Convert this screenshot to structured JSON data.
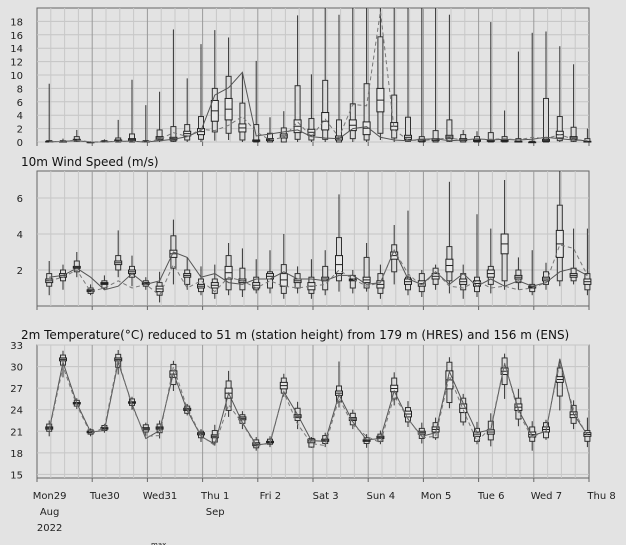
{
  "chart_data": [
    {
      "type": "boxplot",
      "title": "",
      "ylim": [
        0,
        20
      ],
      "yticks": [
        0,
        2,
        4,
        6,
        8,
        10,
        12,
        14,
        16,
        18
      ],
      "grid": true,
      "boxes": [
        [
          0,
          0,
          0,
          0.1,
          0.2,
          8.7
        ],
        [
          0,
          0,
          0,
          0.1,
          0.2,
          0.5
        ],
        [
          0,
          0.1,
          0.2,
          0.4,
          0.8,
          1.8
        ],
        [
          0,
          0,
          0,
          0,
          0,
          0.1
        ],
        [
          0,
          0,
          0,
          0.1,
          0.2,
          0.4
        ],
        [
          0,
          0,
          0.1,
          0.3,
          0.6,
          3.3
        ],
        [
          0,
          0,
          0.2,
          0.5,
          1.2,
          9.3
        ],
        [
          0,
          0,
          0,
          0.1,
          0.2,
          5.5
        ],
        [
          0,
          0.2,
          0.4,
          0.8,
          1.8,
          7.5
        ],
        [
          0,
          0.1,
          0.3,
          0.7,
          2.3,
          16.8
        ],
        [
          0,
          0.3,
          0.9,
          1.6,
          2.6,
          9.5
        ],
        [
          0,
          0.4,
          1.1,
          2.0,
          3.8,
          14.6
        ],
        [
          0.2,
          1.5,
          3.1,
          6.2,
          8.0,
          16.7
        ],
        [
          0.3,
          1.3,
          3.3,
          6.5,
          9.8,
          15.6
        ],
        [
          0,
          0.3,
          1.5,
          2.7,
          5.8,
          10.2
        ],
        [
          0,
          0,
          0.1,
          0.3,
          2.6,
          12.1
        ],
        [
          0,
          0,
          0.2,
          0.5,
          1.3,
          3.7
        ],
        [
          0,
          0,
          0.6,
          1.2,
          2.1,
          4.6
        ],
        [
          0,
          0.4,
          1.4,
          3.3,
          8.4,
          18.9
        ],
        [
          0,
          0.3,
          1.0,
          1.9,
          3.5,
          10.1
        ],
        [
          0,
          0.4,
          1.8,
          4.4,
          9.2,
          20
        ],
        [
          0,
          0,
          0.3,
          0.9,
          3.3,
          19.0
        ],
        [
          0,
          0.5,
          1.7,
          3.3,
          5.7,
          20
        ],
        [
          0,
          0.3,
          1.1,
          3.0,
          8.7,
          20
        ],
        [
          0.3,
          1.3,
          4.5,
          8.0,
          15.7,
          20
        ],
        [
          0,
          0.6,
          1.8,
          2.9,
          7.0,
          20
        ],
        [
          0,
          0.1,
          0.4,
          1.0,
          3.7,
          20
        ],
        [
          0,
          0,
          0.1,
          0.4,
          0.8,
          20
        ],
        [
          0,
          0,
          0.2,
          0.5,
          1.7,
          20
        ],
        [
          0,
          0.1,
          0.5,
          1.0,
          3.3,
          19.0
        ],
        [
          0,
          0,
          0.2,
          0.5,
          1.1,
          1.8
        ],
        [
          0,
          0,
          0.1,
          0.3,
          0.8,
          1.6
        ],
        [
          0,
          0,
          0.1,
          0.3,
          1.4,
          17.9
        ],
        [
          0,
          0,
          0.1,
          0.3,
          0.8,
          4.7
        ],
        [
          0,
          0,
          0,
          0.1,
          0.5,
          13.5
        ],
        [
          0,
          0,
          0,
          0,
          0.1,
          16.3
        ],
        [
          0,
          0,
          0.1,
          0.4,
          6.5,
          16.5
        ],
        [
          0,
          0.2,
          0.6,
          1.6,
          3.8,
          14.3
        ],
        [
          0,
          0.1,
          0.4,
          0.8,
          2.2,
          11.6
        ],
        [
          0,
          0,
          0,
          0.1,
          0.5,
          2.0
        ]
      ],
      "series": [
        {
          "values": [
            0,
            0.1,
            0.2,
            0,
            0,
            0.1,
            0.1,
            0,
            0.2,
            0.4,
            0.8,
            1.7,
            7.0,
            8.1,
            10.4,
            0.9,
            1.2,
            1.5,
            1.8,
            0.8,
            0.6,
            0.5,
            2.0,
            2.3,
            0.7,
            0.3,
            0.2,
            0.4,
            0.5,
            0.2,
            0.3,
            0.5,
            0.3,
            0.4,
            0.3,
            0.4,
            0.7,
            0.5,
            0.3,
            0.2
          ]
        },
        {
          "values": [
            0,
            0.1,
            0.3,
            0,
            0,
            0.1,
            0.1,
            0,
            0.4,
            1.4,
            0.8,
            1.9,
            1.7,
            2.5,
            3.8,
            1.5,
            0.3,
            0.7,
            3.0,
            0.8,
            3.4,
            0.7,
            5.6,
            5.4,
            19.5,
            1.8,
            0.3,
            0.2,
            0.4,
            0.6,
            0.3,
            0.4,
            0.4,
            0.5,
            0.3,
            0.7,
            0.5,
            1.1,
            0.4,
            0.2
          ]
        }
      ]
    },
    {
      "type": "boxplot",
      "title": "10m Wind Speed (m/s)",
      "ylim": [
        0,
        7.5
      ],
      "yticks": [
        2,
        4,
        6
      ],
      "grid": true,
      "boxes": [
        [
          0.6,
          1.1,
          1.3,
          1.5,
          1.8,
          2.5
        ],
        [
          0.9,
          1.4,
          1.6,
          1.8,
          2.0,
          2.3
        ],
        [
          1.6,
          1.9,
          2.1,
          2.2,
          2.5,
          3.0
        ],
        [
          0.6,
          0.7,
          0.8,
          0.9,
          1.0,
          1.2
        ],
        [
          0.9,
          1.0,
          1.2,
          1.3,
          1.4,
          1.7
        ],
        [
          1.6,
          2.0,
          2.3,
          2.5,
          2.8,
          4.2
        ],
        [
          1.1,
          1.6,
          1.8,
          2.0,
          2.2,
          2.8
        ],
        [
          0.9,
          1.1,
          1.2,
          1.3,
          1.4,
          1.6
        ],
        [
          0.2,
          0.6,
          0.8,
          1.1,
          1.3,
          1.9
        ],
        [
          1.2,
          2.1,
          2.7,
          3.1,
          3.9,
          4.8
        ],
        [
          0.9,
          1.2,
          1.6,
          1.8,
          2.0,
          2.7
        ],
        [
          0.6,
          0.8,
          1.0,
          1.2,
          1.5,
          2.2
        ],
        [
          0.4,
          0.7,
          1.0,
          1.3,
          1.5,
          2.3
        ],
        [
          0.6,
          0.9,
          1.5,
          2.2,
          2.8,
          3.5
        ],
        [
          0.5,
          0.9,
          1.3,
          1.5,
          2.1,
          3.2
        ],
        [
          0.7,
          0.9,
          1.0,
          1.3,
          1.6,
          2.6
        ],
        [
          0.7,
          1.0,
          1.5,
          1.8,
          1.9,
          3.1
        ],
        [
          0.4,
          0.7,
          1.1,
          1.8,
          2.3,
          4.0
        ],
        [
          0.7,
          1.0,
          1.3,
          1.5,
          1.8,
          2.2
        ],
        [
          0.4,
          0.7,
          0.9,
          1.3,
          1.6,
          2.6
        ],
        [
          0.6,
          0.9,
          1.4,
          1.6,
          2.2,
          3.1
        ],
        [
          0.8,
          1.4,
          1.8,
          2.8,
          3.8,
          6.2
        ],
        [
          0.7,
          1.0,
          1.4,
          1.5,
          1.7,
          2.0
        ],
        [
          0.8,
          1.0,
          1.3,
          1.6,
          2.7,
          3.5
        ],
        [
          0.4,
          0.7,
          1.0,
          1.4,
          1.8,
          2.3
        ],
        [
          1.2,
          1.9,
          2.6,
          3.0,
          3.4,
          4.5
        ],
        [
          0.6,
          0.9,
          1.2,
          1.5,
          1.6,
          5.3
        ],
        [
          0.5,
          0.8,
          1.1,
          1.4,
          1.8,
          2.0
        ],
        [
          0.9,
          1.2,
          1.5,
          1.8,
          2.1,
          2.3
        ],
        [
          0.7,
          1.4,
          1.9,
          2.6,
          3.3,
          6.9
        ],
        [
          0.4,
          0.9,
          1.2,
          1.5,
          1.8,
          2.3
        ],
        [
          0.5,
          0.8,
          1.1,
          1.4,
          1.6,
          5.1
        ],
        [
          0.7,
          1.2,
          1.6,
          2.0,
          2.2,
          4.3
        ],
        [
          0.9,
          1.4,
          2.9,
          4.0,
          4.0,
          7.0
        ],
        [
          0.9,
          1.3,
          1.5,
          1.7,
          2.0,
          2.7
        ],
        [
          0.6,
          0.8,
          1.0,
          1.1,
          1.2,
          3.1
        ],
        [
          0.9,
          1.2,
          1.4,
          1.6,
          1.9,
          2.4
        ],
        [
          1.1,
          1.4,
          2.7,
          4.2,
          5.6,
          7.5
        ],
        [
          1.2,
          1.4,
          1.6,
          1.8,
          2.1,
          4.3
        ],
        [
          0.6,
          0.9,
          1.2,
          1.5,
          1.8,
          4.3
        ]
      ],
      "series": [
        {
          "values": [
            1.6,
            1.7,
            2.1,
            1.6,
            0.9,
            1.1,
            1.8,
            1.2,
            1.4,
            3.0,
            2.7,
            1.6,
            1.8,
            1.3,
            1.2,
            1.5,
            1.5,
            1.9,
            1.5,
            1.5,
            1.4,
            1.7,
            1.7,
            1.2,
            1.3,
            3.1,
            1.5,
            1.2,
            1.9,
            1.2,
            1.8,
            1.1,
            1.5,
            1.1,
            1.4,
            1.1,
            1.3,
            1.9,
            2.1,
            1.7
          ]
        },
        {
          "values": [
            1.4,
            1.6,
            2.0,
            0.8,
            1.0,
            1.4,
            1.0,
            1.2,
            0.6,
            2.3,
            1.0,
            1.4,
            0.8,
            1.6,
            1.4,
            1.0,
            1.4,
            1.1,
            1.0,
            1.1,
            1.2,
            2.0,
            1.5,
            1.1,
            1.3,
            3.1,
            1.8,
            1.1,
            1.9,
            1.1,
            1.0,
            1.4,
            1.0,
            1.1,
            0.9,
            1.0,
            1.3,
            3.4,
            3.2,
            1.7
          ]
        }
      ]
    },
    {
      "type": "boxplot",
      "title": "2m Temperature(°C) reduced to 51 m (station height) from 179 m (HRES) and 156 m (ENS)",
      "ylim": [
        14.5,
        33
      ],
      "yticks": [
        15,
        18,
        21,
        24,
        27,
        30,
        33
      ],
      "grid": true,
      "boxes": [
        [
          20.3,
          21.0,
          21.3,
          21.6,
          22.0,
          22.5
        ],
        [
          28.5,
          30.2,
          30.8,
          31.2,
          31.6,
          32.2
        ],
        [
          24.1,
          24.5,
          24.8,
          25.0,
          25.3,
          25.6
        ],
        [
          20.3,
          20.6,
          20.8,
          21.0,
          21.2,
          21.4
        ],
        [
          20.8,
          21.1,
          21.3,
          21.5,
          21.8,
          22.0
        ],
        [
          28.9,
          29.9,
          30.8,
          31.2,
          31.7,
          32.3
        ],
        [
          24.0,
          24.6,
          24.9,
          25.1,
          25.5,
          25.8
        ],
        [
          20.3,
          20.9,
          21.2,
          21.5,
          21.9,
          22.2
        ],
        [
          20.0,
          20.8,
          21.3,
          21.6,
          22.0,
          22.5
        ],
        [
          26.6,
          27.5,
          28.5,
          29.4,
          30.3,
          30.8
        ],
        [
          23.2,
          23.5,
          23.9,
          24.2,
          24.5,
          24.8
        ],
        [
          19.5,
          20.1,
          20.5,
          20.8,
          21.0,
          21.3
        ],
        [
          19.0,
          19.5,
          20.1,
          20.5,
          21.1,
          21.9
        ],
        [
          23.0,
          23.9,
          25.6,
          27.0,
          28.0,
          29.4
        ],
        [
          21.3,
          22.1,
          22.6,
          23.0,
          23.3,
          23.8
        ],
        [
          18.3,
          18.7,
          19.0,
          19.4,
          19.8,
          20.2
        ],
        [
          18.8,
          19.2,
          19.4,
          19.6,
          19.9,
          20.3
        ],
        [
          25.8,
          26.3,
          26.9,
          27.8,
          28.4,
          29.0
        ],
        [
          21.3,
          22.5,
          22.9,
          23.3,
          24.2,
          25.1
        ],
        [
          18.7,
          18.8,
          19.4,
          19.9,
          20.0,
          20.2
        ],
        [
          18.8,
          19.3,
          19.6,
          19.9,
          20.4,
          20.8
        ],
        [
          24.3,
          25.1,
          26.0,
          26.6,
          27.3,
          30.7
        ],
        [
          21.3,
          21.9,
          22.5,
          22.9,
          23.5,
          24.0
        ],
        [
          18.7,
          19.3,
          19.6,
          19.8,
          20.1,
          20.6
        ],
        [
          19.2,
          19.6,
          20.0,
          20.3,
          20.6,
          21.1
        ],
        [
          24.6,
          25.5,
          26.5,
          27.4,
          28.4,
          29.2
        ],
        [
          21.6,
          22.3,
          23.0,
          23.8,
          24.3,
          25.2
        ],
        [
          19.3,
          20.0,
          20.6,
          21.0,
          21.4,
          22.2
        ],
        [
          19.8,
          20.1,
          20.9,
          21.6,
          22.2,
          22.9
        ],
        [
          24.2,
          25.0,
          26.9,
          29.4,
          30.6,
          31.3
        ],
        [
          21.8,
          22.3,
          23.6,
          24.8,
          25.6,
          26.2
        ],
        [
          19.2,
          19.6,
          20.3,
          20.9,
          21.4,
          22.3
        ],
        [
          18.9,
          19.8,
          20.6,
          21.2,
          22.4,
          23.5
        ],
        [
          25.5,
          27.5,
          28.9,
          29.8,
          31.2,
          31.8
        ],
        [
          21.7,
          22.7,
          23.9,
          24.8,
          25.6,
          26.9
        ],
        [
          18.3,
          19.6,
          20.2,
          20.9,
          21.6,
          22.4
        ],
        [
          19.8,
          20.1,
          20.9,
          21.6,
          22.2,
          22.6
        ],
        [
          23.9,
          25.9,
          27.8,
          28.6,
          29.8,
          30.9
        ],
        [
          21.3,
          22.1,
          22.9,
          23.7,
          24.6,
          25.3
        ],
        [
          18.8,
          19.6,
          20.3,
          20.8,
          21.1,
          22.9
        ]
      ],
      "series": [
        {
          "values": [
            21.2,
            30.6,
            24.9,
            20.9,
            21.1,
            30.6,
            24.8,
            20.0,
            21.1,
            29.1,
            23.9,
            20.3,
            19.2,
            26.3,
            22.2,
            19.1,
            19.3,
            26.5,
            23.3,
            19.7,
            19.6,
            26.1,
            22.3,
            19.8,
            20.0,
            26.6,
            22.7,
            20.3,
            20.8,
            29.3,
            24.9,
            20.8,
            21.2,
            30.4,
            24.0,
            20.4,
            21.0,
            31.1,
            23.4,
            20.5
          ]
        },
        {
          "values": [
            21.0,
            30.0,
            24.6,
            20.7,
            21.5,
            31.0,
            24.5,
            20.3,
            20.4,
            30.0,
            24.2,
            20.4,
            19.0,
            24.7,
            22.1,
            18.9,
            19.5,
            26.4,
            22.0,
            19.3,
            19.0,
            25.6,
            21.9,
            20.3,
            19.4,
            25.9,
            22.8,
            20.1,
            20.3,
            28.7,
            24.0,
            19.6,
            21.5,
            30.5,
            23.6,
            20.1,
            21.2,
            30.5,
            24.0,
            20.3
          ]
        }
      ]
    }
  ],
  "xaxis": {
    "ticks": [
      {
        "label": "Mon29",
        "color": "#222222"
      },
      {
        "label": "Tue30",
        "color": "#222222"
      },
      {
        "label": "Wed31",
        "color": "#222222"
      },
      {
        "label": "Thu 1",
        "color": "#222222"
      },
      {
        "label": "Fri 2",
        "color": "#222222"
      },
      {
        "label": "Sat 3",
        "color": "#222222"
      },
      {
        "label": "Sun 4",
        "color": "#777777"
      },
      {
        "label": "Mon 5",
        "color": "#222222"
      },
      {
        "label": "Tue 6",
        "color": "#222222"
      },
      {
        "label": "Wed 7",
        "color": "#222222"
      },
      {
        "label": "Thu 8",
        "color": "#222222"
      }
    ],
    "sublabels": [
      {
        "text": "Aug",
        "tick": 0
      },
      {
        "text": "2022",
        "tick": 0
      },
      {
        "text": "Sep",
        "tick": 3
      }
    ]
  },
  "footer_text": "max"
}
